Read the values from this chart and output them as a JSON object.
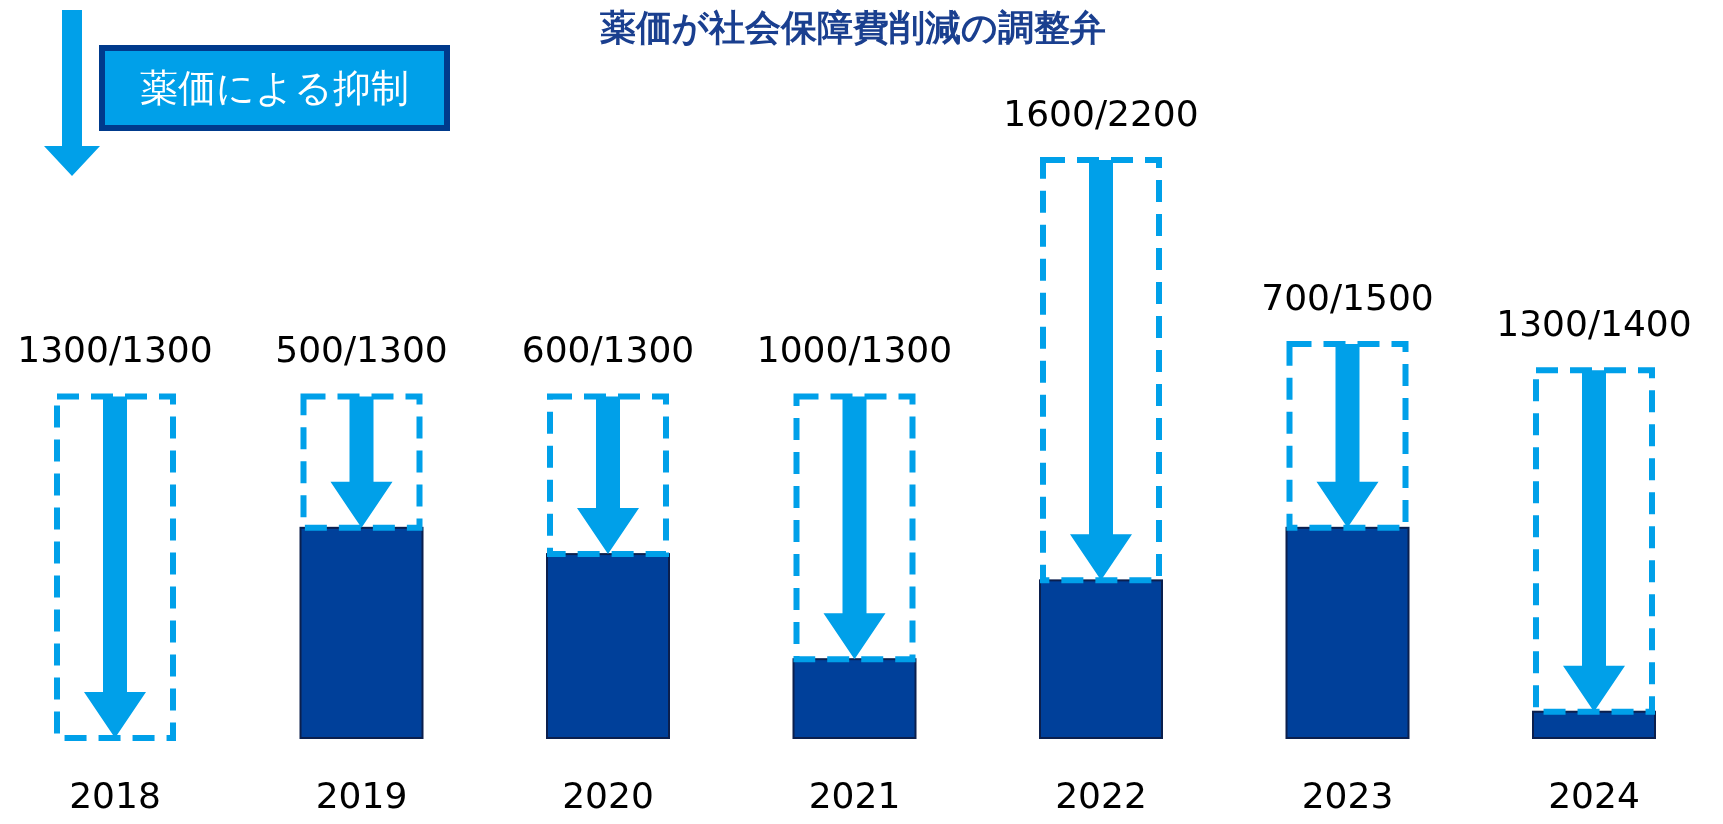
{
  "chart_data": {
    "type": "bar",
    "title": "薬価が社会保障費削減の調整弁",
    "categories": [
      "2018",
      "2019",
      "2020",
      "2021",
      "2022",
      "2023",
      "2024"
    ],
    "stacked": true,
    "legend": "top left",
    "series": [
      {
        "color": "#00409a",
        "values": [
          0,
          800,
          700,
          300,
          600,
          800,
          100
        ]
      },
      {
        "name": "薬価による抑制",
        "color": "#00a0e9",
        "line_style": "dashed",
        "values": [
          1300,
          500,
          600,
          1000,
          1600,
          700,
          1300
        ],
        "value_labels": [
          "1300/1300",
          "500/1300",
          "600/1300",
          "1000/1300",
          "1600/2200",
          "700/1500",
          "1300/1400"
        ]
      }
    ]
  }
}
